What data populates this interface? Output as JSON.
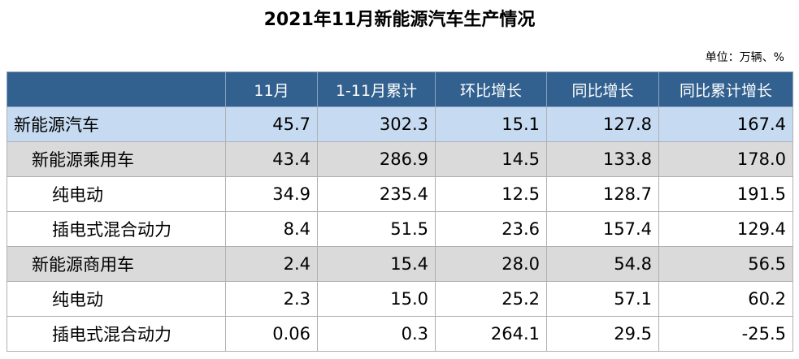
{
  "header": {
    "title": "2021年11月新能源汽车生产情况",
    "unit": "单位：万辆、%"
  },
  "table": {
    "columns": [
      "11月",
      "1-11月累计",
      "环比增长",
      "同比增长",
      "同比累计增长"
    ],
    "rows": [
      {
        "label": "新能源汽车",
        "values": [
          "45.7",
          "302.3",
          "15.1",
          "127.8",
          "167.4"
        ]
      },
      {
        "label": "新能源乘用车",
        "values": [
          "43.4",
          "286.9",
          "14.5",
          "133.8",
          "178.0"
        ]
      },
      {
        "label": "纯电动",
        "values": [
          "34.9",
          "235.4",
          "12.5",
          "128.7",
          "191.5"
        ]
      },
      {
        "label": "插电式混合动力",
        "values": [
          "8.4",
          "51.5",
          "23.6",
          "157.4",
          "129.4"
        ]
      },
      {
        "label": "新能源商用车",
        "values": [
          "2.4",
          "15.4",
          "28.0",
          "54.8",
          "56.5"
        ]
      },
      {
        "label": "纯电动",
        "values": [
          "2.3",
          "15.0",
          "25.2",
          "57.1",
          "60.2"
        ]
      },
      {
        "label": "插电式混合动力",
        "values": [
          "0.06",
          "0.3",
          "264.1",
          "29.5",
          "-25.5"
        ]
      }
    ]
  }
}
